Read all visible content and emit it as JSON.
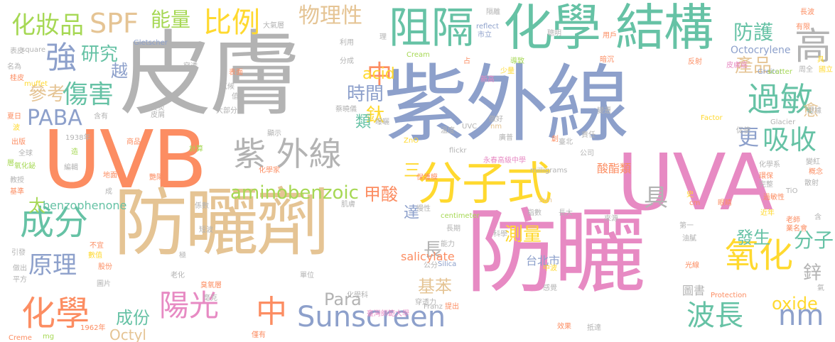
{
  "palette": {
    "orange": "#fc8d62",
    "blue": "#8da0cb",
    "pink": "#e78ac3",
    "lime": "#a6d854",
    "yellow": "#ffd92f",
    "tan": "#e5c494",
    "gray": "#b3b3b3",
    "teal": "#66c2a5",
    "background": "#ffffff"
  },
  "words": [
    {
      "text": "紫外線",
      "color": "blue"
    },
    {
      "text": "皮膚",
      "color": "gray"
    },
    {
      "text": "UVB",
      "color": "orange"
    },
    {
      "text": "UVA",
      "color": "pink"
    },
    {
      "text": "防曬劑",
      "color": "tan"
    },
    {
      "text": "防曬",
      "color": "pink"
    },
    {
      "text": "化學",
      "color": "teal"
    },
    {
      "text": "結構",
      "color": "teal"
    },
    {
      "text": "分子式",
      "color": "yellow"
    },
    {
      "text": "紫 外線",
      "color": "gray"
    },
    {
      "text": "阻隔",
      "color": "teal"
    },
    {
      "text": "氧化",
      "color": "yellow"
    },
    {
      "text": "成分",
      "color": "teal"
    },
    {
      "text": "過敏",
      "color": "teal"
    },
    {
      "text": "吸收",
      "color": "teal"
    },
    {
      "text": "陽光",
      "color": "pink"
    },
    {
      "text": "化學",
      "color": "orange"
    },
    {
      "text": "中",
      "color": "orange"
    },
    {
      "text": "Sunscreen",
      "color": "blue"
    },
    {
      "text": "波長",
      "color": "teal"
    },
    {
      "text": "nm",
      "color": "blue"
    },
    {
      "text": "物理性",
      "color": "tan"
    },
    {
      "text": "比例",
      "color": "yellow"
    },
    {
      "text": "SPF",
      "color": "tan"
    },
    {
      "text": "化妝品",
      "color": "lime"
    },
    {
      "text": "能量",
      "color": "lime"
    },
    {
      "text": "強",
      "color": "blue"
    },
    {
      "text": "研究",
      "color": "teal"
    },
    {
      "text": "傷害",
      "color": "teal"
    },
    {
      "text": "參考",
      "color": "tan"
    },
    {
      "text": "越",
      "color": "blue"
    },
    {
      "text": "PABA",
      "color": "blue"
    },
    {
      "text": "原理",
      "color": "blue"
    },
    {
      "text": "防護",
      "color": "teal"
    },
    {
      "text": "高",
      "color": "gray"
    },
    {
      "text": "Octocrylene",
      "color": "blue"
    },
    {
      "text": "產品",
      "color": "tan"
    },
    {
      "text": "中",
      "color": "orange"
    },
    {
      "text": "時間",
      "color": "blue"
    },
    {
      "text": "更",
      "color": "blue"
    },
    {
      "text": "愈",
      "color": "tan"
    },
    {
      "text": "鈦",
      "color": "yellow"
    },
    {
      "text": "類",
      "color": "teal"
    },
    {
      "text": "acid",
      "color": "yellow"
    },
    {
      "text": "aminobenzoic",
      "color": "lime"
    },
    {
      "text": "甲酸",
      "color": "orange"
    },
    {
      "text": "三",
      "color": "yellow"
    },
    {
      "text": "具",
      "color": "gray"
    },
    {
      "text": "測量",
      "color": "yellow"
    },
    {
      "text": "發生",
      "color": "teal"
    },
    {
      "text": "分子",
      "color": "teal"
    },
    {
      "text": "達",
      "color": "blue"
    },
    {
      "text": "長",
      "color": "gray"
    },
    {
      "text": "Para",
      "color": "gray"
    },
    {
      "text": "基苯",
      "color": "tan"
    },
    {
      "text": "oxide",
      "color": "yellow"
    },
    {
      "text": "鋅",
      "color": "gray"
    },
    {
      "text": "成份",
      "color": "teal"
    },
    {
      "text": "Octyl",
      "color": "tan"
    },
    {
      "text": "太",
      "color": "lime"
    },
    {
      "text": "benzophenone",
      "color": "teal"
    },
    {
      "text": "salicylate",
      "color": "orange"
    },
    {
      "text": "酸酯類",
      "color": "orange"
    },
    {
      "text": "台北市",
      "color": "blue"
    },
    {
      "text": "Gletscher",
      "color": "blue"
    },
    {
      "text": "reflect",
      "color": "blue"
    },
    {
      "text": "Cream",
      "color": "lime"
    },
    {
      "text": "square",
      "color": "gray"
    },
    {
      "text": "muffet",
      "color": "yellow"
    },
    {
      "text": "Greiter",
      "color": "blue"
    },
    {
      "text": "scatter",
      "color": "lime"
    },
    {
      "text": "Factor",
      "color": "yellow"
    },
    {
      "text": "Glacier",
      "color": "gray"
    },
    {
      "text": "UVC",
      "color": "gray"
    },
    {
      "text": "nm",
      "color": "tan"
    },
    {
      "text": "ZnO",
      "color": "yellow"
    },
    {
      "text": "flickr",
      "color": "gray"
    },
    {
      "text": "Sun",
      "color": "tan"
    },
    {
      "text": "milligrams",
      "color": "gray"
    },
    {
      "text": "centimeter",
      "color": "lime"
    },
    {
      "text": "TiO",
      "color": "gray"
    },
    {
      "text": "Silica",
      "color": "blue"
    },
    {
      "text": "Protection",
      "color": "orange"
    },
    {
      "text": "Franz",
      "color": "gray"
    },
    {
      "text": "Creme",
      "color": "orange"
    },
    {
      "text": "mg",
      "color": "lime"
    },
    {
      "text": "cm",
      "color": "orange"
    },
    {
      "text": "1938年",
      "color": "gray"
    },
    {
      "text": "1962年",
      "color": "orange"
    },
    {
      "text": "永春高級中學",
      "color": "pink"
    },
    {
      "text": "臺灣師範大學",
      "color": "pink"
    },
    {
      "text": "大氣層",
      "color": "gray"
    },
    {
      "text": "市立",
      "color": "blue"
    },
    {
      "text": "隔離",
      "color": "gray"
    },
    {
      "text": "長波",
      "color": "orange"
    },
    {
      "text": "有限",
      "color": "orange"
    },
    {
      "text": "聰明",
      "color": "gray"
    },
    {
      "text": "用戶",
      "color": "orange"
    },
    {
      "text": "理",
      "color": "gray"
    },
    {
      "text": "利用",
      "color": "gray"
    },
    {
      "text": "分成",
      "color": "gray"
    },
    {
      "text": "占",
      "color": "orange"
    },
    {
      "text": "導致",
      "color": "lime"
    },
    {
      "text": "暗沉",
      "color": "orange"
    },
    {
      "text": "反射",
      "color": "orange"
    },
    {
      "text": "皮膚癌",
      "color": "pink"
    },
    {
      "text": "具",
      "color": "yellow"
    },
    {
      "text": "國立",
      "color": "yellow"
    },
    {
      "text": "周全",
      "color": "gray"
    },
    {
      "text": "表皮",
      "color": "gray"
    },
    {
      "text": "名為",
      "color": "gray"
    },
    {
      "text": "桂皮",
      "color": "orange"
    },
    {
      "text": "夏日",
      "color": "orange"
    },
    {
      "text": "波",
      "color": "yellow"
    },
    {
      "text": "出版",
      "color": "orange"
    },
    {
      "text": "全球",
      "color": "gray"
    },
    {
      "text": "層",
      "color": "lime"
    },
    {
      "text": "氧化鉍",
      "color": "lime"
    },
    {
      "text": "教授",
      "color": "gray"
    },
    {
      "text": "基準",
      "color": "orange"
    },
    {
      "text": "表面",
      "color": "orange"
    },
    {
      "text": "氣候",
      "color": "gray"
    },
    {
      "text": "值",
      "color": "gray"
    },
    {
      "text": "炎炎",
      "color": "gray"
    },
    {
      "text": "皮屑",
      "color": "gray"
    },
    {
      "text": "大部分",
      "color": "gray"
    },
    {
      "text": "含有",
      "color": "gray"
    },
    {
      "text": "商品",
      "color": "orange"
    },
    {
      "text": "造",
      "color": "lime"
    },
    {
      "text": "編輯",
      "color": "gray"
    },
    {
      "text": "計算",
      "color": "lime"
    },
    {
      "text": "地面",
      "color": "orange"
    },
    {
      "text": "艷陽",
      "color": "orange"
    },
    {
      "text": "成",
      "color": "gray"
    },
    {
      "text": "係數",
      "color": "gray"
    },
    {
      "text": "穿透",
      "color": "gray"
    },
    {
      "text": "少量",
      "color": "yellow"
    },
    {
      "text": "新高",
      "color": "pink"
    },
    {
      "text": "做好",
      "color": "gray"
    },
    {
      "text": "溫度",
      "color": "gray"
    },
    {
      "text": "廣普",
      "color": "gray"
    },
    {
      "text": "變遷",
      "color": "gray"
    },
    {
      "text": "責任",
      "color": "gray"
    },
    {
      "text": "變紅",
      "color": "gray"
    },
    {
      "text": "概念",
      "color": "orange"
    },
    {
      "text": "化學系",
      "color": "gray"
    },
    {
      "text": "環保",
      "color": "orange"
    },
    {
      "text": "散射",
      "color": "gray"
    },
    {
      "text": "完整",
      "color": "gray"
    },
    {
      "text": "過敏性",
      "color": "orange"
    },
    {
      "text": "眼睛",
      "color": "orange"
    },
    {
      "text": "近年",
      "color": "yellow"
    },
    {
      "text": "老師",
      "color": "orange"
    },
    {
      "text": "含",
      "color": "gray"
    },
    {
      "text": "第一",
      "color": "gray"
    },
    {
      "text": "油膩",
      "color": "gray"
    },
    {
      "text": "業名會",
      "color": "orange"
    },
    {
      "text": "光線",
      "color": "orange"
    },
    {
      "text": "氣",
      "color": "gray"
    },
    {
      "text": "圖書",
      "color": "gray"
    },
    {
      "text": "感覺",
      "color": "gray"
    },
    {
      "text": "效果",
      "color": "orange"
    },
    {
      "text": "抵達",
      "color": "gray"
    },
    {
      "text": "中波",
      "color": "yellow"
    },
    {
      "text": "提出",
      "color": "orange"
    },
    {
      "text": "化學科",
      "color": "gray"
    },
    {
      "text": "能力",
      "color": "gray"
    },
    {
      "text": "公分",
      "color": "gray"
    },
    {
      "text": "僅有",
      "color": "orange"
    },
    {
      "text": "毫克",
      "color": "gray"
    },
    {
      "text": "單位",
      "color": "gray"
    },
    {
      "text": "臭氧層",
      "color": "orange"
    },
    {
      "text": "老化",
      "color": "gray"
    },
    {
      "text": "極",
      "color": "gray"
    },
    {
      "text": "圖片",
      "color": "gray"
    },
    {
      "text": "平方",
      "color": "gray"
    },
    {
      "text": "做出",
      "color": "gray"
    },
    {
      "text": "引發",
      "color": "gray"
    },
    {
      "text": "股份",
      "color": "orange"
    },
    {
      "text": "數值",
      "color": "yellow"
    },
    {
      "text": "不宜",
      "color": "orange"
    },
    {
      "text": "短波",
      "color": "gray"
    },
    {
      "text": "肌膚",
      "color": "gray"
    },
    {
      "text": "慢性",
      "color": "gray"
    },
    {
      "text": "長期",
      "color": "gray"
    },
    {
      "text": "指數",
      "color": "gray"
    },
    {
      "text": "長大",
      "color": "gray"
    },
    {
      "text": "來源",
      "color": "gray"
    },
    {
      "text": "科學",
      "color": "gray"
    },
    {
      "text": "穿透力",
      "color": "gray"
    },
    {
      "text": "保護膜",
      "color": "orange"
    },
    {
      "text": "臺北",
      "color": "gray"
    },
    {
      "text": "蔡曉儀",
      "color": "gray"
    },
    {
      "text": "曝曬",
      "color": "gray"
    },
    {
      "text": "創",
      "color": "orange"
    },
    {
      "text": "公司",
      "color": "gray"
    },
    {
      "text": "顯示",
      "color": "gray"
    },
    {
      "text": "化學家",
      "color": "orange"
    },
    {
      "text": "史",
      "color": "yellow"
    },
    {
      "text": "促使",
      "color": "gray"
    },
    {
      "text": "證據",
      "color": "gray"
    }
  ]
}
